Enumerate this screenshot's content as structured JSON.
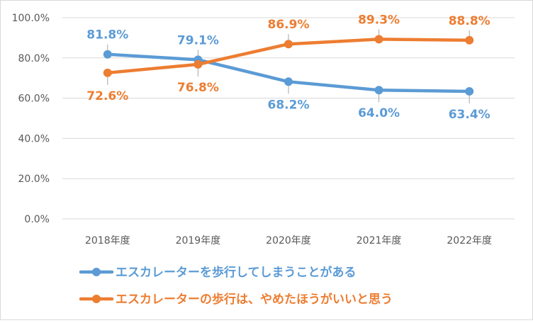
{
  "chart_data": {
    "type": "line",
    "title": "",
    "xlabel": "",
    "ylabel": "",
    "categories": [
      "2018年度",
      "2019年度",
      "2020年度",
      "2021年度",
      "2022年度"
    ],
    "ylim": [
      0,
      100
    ],
    "yticks": [
      "0.0%",
      "20.0%",
      "40.0%",
      "60.0%",
      "80.0%",
      "100.0%"
    ],
    "grid": true,
    "legend_position": "bottom",
    "series": [
      {
        "name": "エスカレーターを歩行してしまうことがある",
        "color": "#5B9BD5",
        "values": [
          81.8,
          79.1,
          68.2,
          64.0,
          63.4
        ],
        "labels": [
          "81.8%",
          "79.1%",
          "68.2%",
          "64.0%",
          "63.4%"
        ],
        "label_side": [
          "above",
          "above",
          "below",
          "below",
          "below"
        ]
      },
      {
        "name": "エスカレーターの歩行は、やめたほうがいいと思う",
        "color": "#ED7D31",
        "values": [
          72.6,
          76.8,
          86.9,
          89.3,
          88.8
        ],
        "labels": [
          "72.6%",
          "76.8%",
          "86.9%",
          "89.3%",
          "88.8%"
        ],
        "label_side": [
          "below",
          "below",
          "above",
          "above",
          "above"
        ]
      }
    ]
  }
}
